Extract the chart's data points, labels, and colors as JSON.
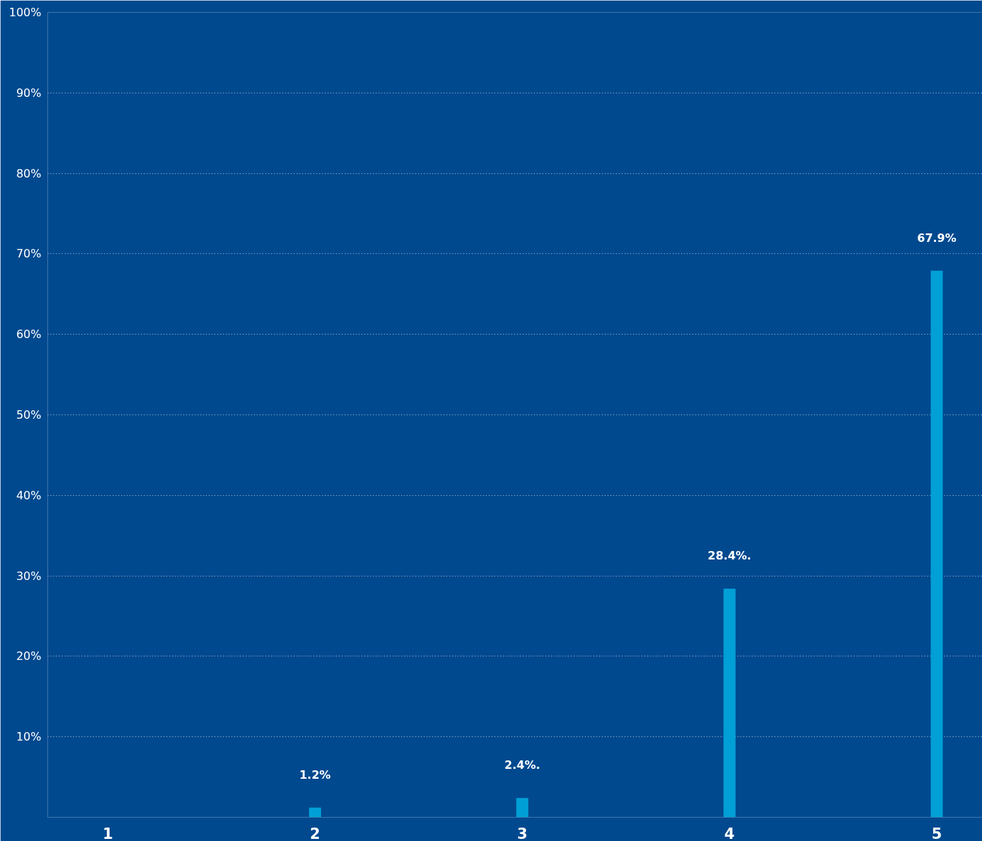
{
  "chart_data": {
    "type": "bar",
    "categories": [
      "1",
      "2",
      "3",
      "4",
      "5"
    ],
    "values": [
      null,
      1.2,
      2.4,
      28.4,
      67.9
    ],
    "value_labels": [
      null,
      "1.2%",
      "2.4%.",
      "28.4%.",
      "67.9%"
    ],
    "color": "#00a0d6",
    "ylim": [
      0,
      100
    ],
    "yticks": [
      {
        "value": 0,
        "label": null
      },
      {
        "value": 10,
        "label": "10%"
      },
      {
        "value": 20,
        "label": "20%"
      },
      {
        "value": 30,
        "label": "30%"
      },
      {
        "value": 40,
        "label": "40%"
      },
      {
        "value": 50,
        "label": "50%"
      },
      {
        "value": 60,
        "label": "60%"
      },
      {
        "value": 70,
        "label": "70%"
      },
      {
        "value": 80,
        "label": "80%"
      },
      {
        "value": 90,
        "label": "90%"
      },
      {
        "value": 100,
        "label": "100%"
      }
    ],
    "grid": "y"
  }
}
